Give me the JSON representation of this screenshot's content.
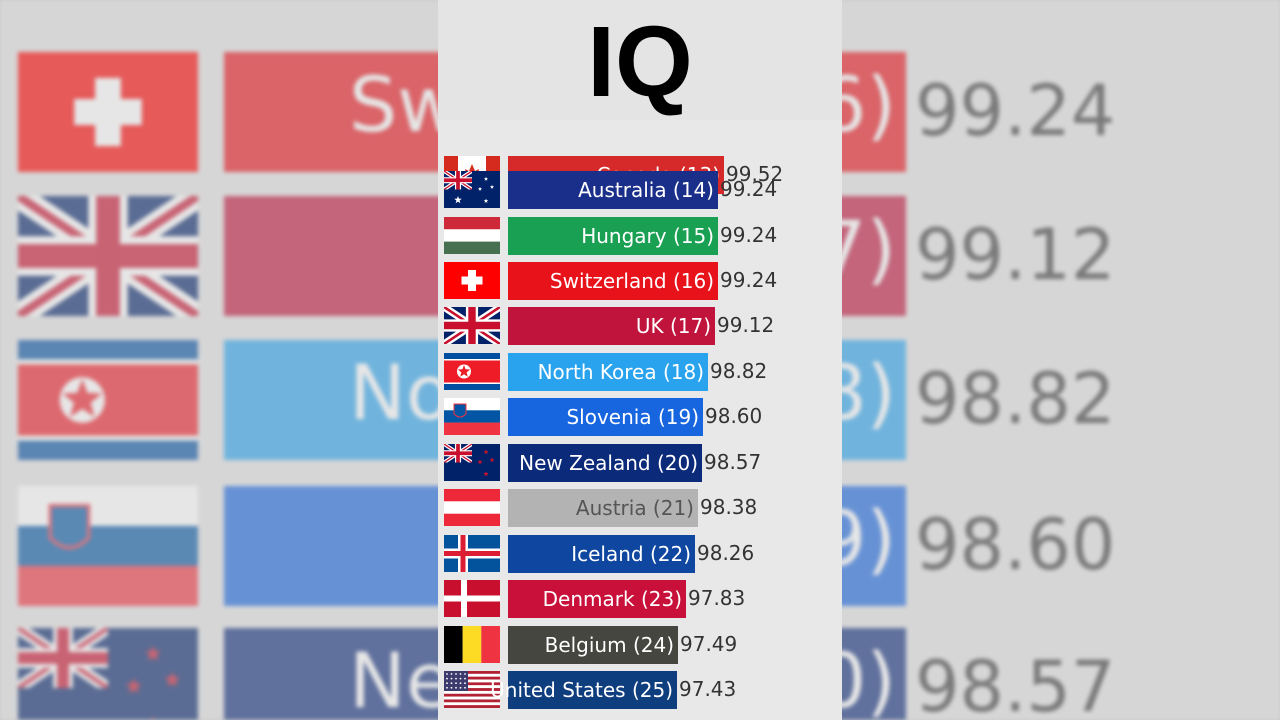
{
  "title": "IQ",
  "background": {
    "bar_labels": [
      "Sw",
      "",
      "No",
      "",
      "New"
    ],
    "bar_ranks": [
      "6)",
      "7)",
      "8)",
      "9)",
      "0)"
    ],
    "values": [
      "99.24",
      "99.12",
      "98.82",
      "98.60",
      "98.57"
    ]
  },
  "chart_data": {
    "type": "bar",
    "orientation": "horizontal",
    "title": "IQ",
    "categories": [
      "Canada (13)",
      "Australia (14)",
      "Hungary (15)",
      "Switzerland (16)",
      "UK (17)",
      "North Korea (18)",
      "Slovenia (19)",
      "New Zealand (20)",
      "Austria (21)",
      "Iceland (22)",
      "Denmark (23)",
      "Belgium (24)",
      "United States (25)"
    ],
    "values": [
      99.52,
      99.24,
      99.24,
      99.24,
      99.12,
      98.82,
      98.6,
      98.57,
      98.38,
      98.26,
      97.83,
      97.49,
      97.43
    ],
    "value_labels": [
      "99.52",
      "99.24",
      "99.24",
      "99.24",
      "99.12",
      "98.82",
      "98.60",
      "98.57",
      "98.38",
      "98.26",
      "97.83",
      "97.49",
      "97.43"
    ],
    "bar_colors": [
      "#d62a2a",
      "#1a2f8a",
      "#1aa052",
      "#e8121a",
      "#c0143c",
      "#29a3ee",
      "#1766e0",
      "#0c2a7a",
      "#b3b3b3",
      "#0e46a0",
      "#c8103a",
      "#45463f",
      "#0f3e7e"
    ],
    "label_colors": [
      "#ffffff",
      "#ffffff",
      "#ffffff",
      "#ffffff",
      "#ffffff",
      "#ffffff",
      "#ffffff",
      "#ffffff",
      "#555555",
      "#ffffff",
      "#ffffff",
      "#ffffff",
      "#ffffff"
    ],
    "flag_icons": [
      "canada-flag-icon",
      "australia-flag-icon",
      "hungary-flag-icon",
      "switzerland-flag-icon",
      "uk-flag-icon",
      "north-korea-flag-icon",
      "slovenia-flag-icon",
      "new-zealand-flag-icon",
      "austria-flag-icon",
      "iceland-flag-icon",
      "denmark-flag-icon",
      "belgium-flag-icon",
      "usa-flag-icon"
    ]
  }
}
